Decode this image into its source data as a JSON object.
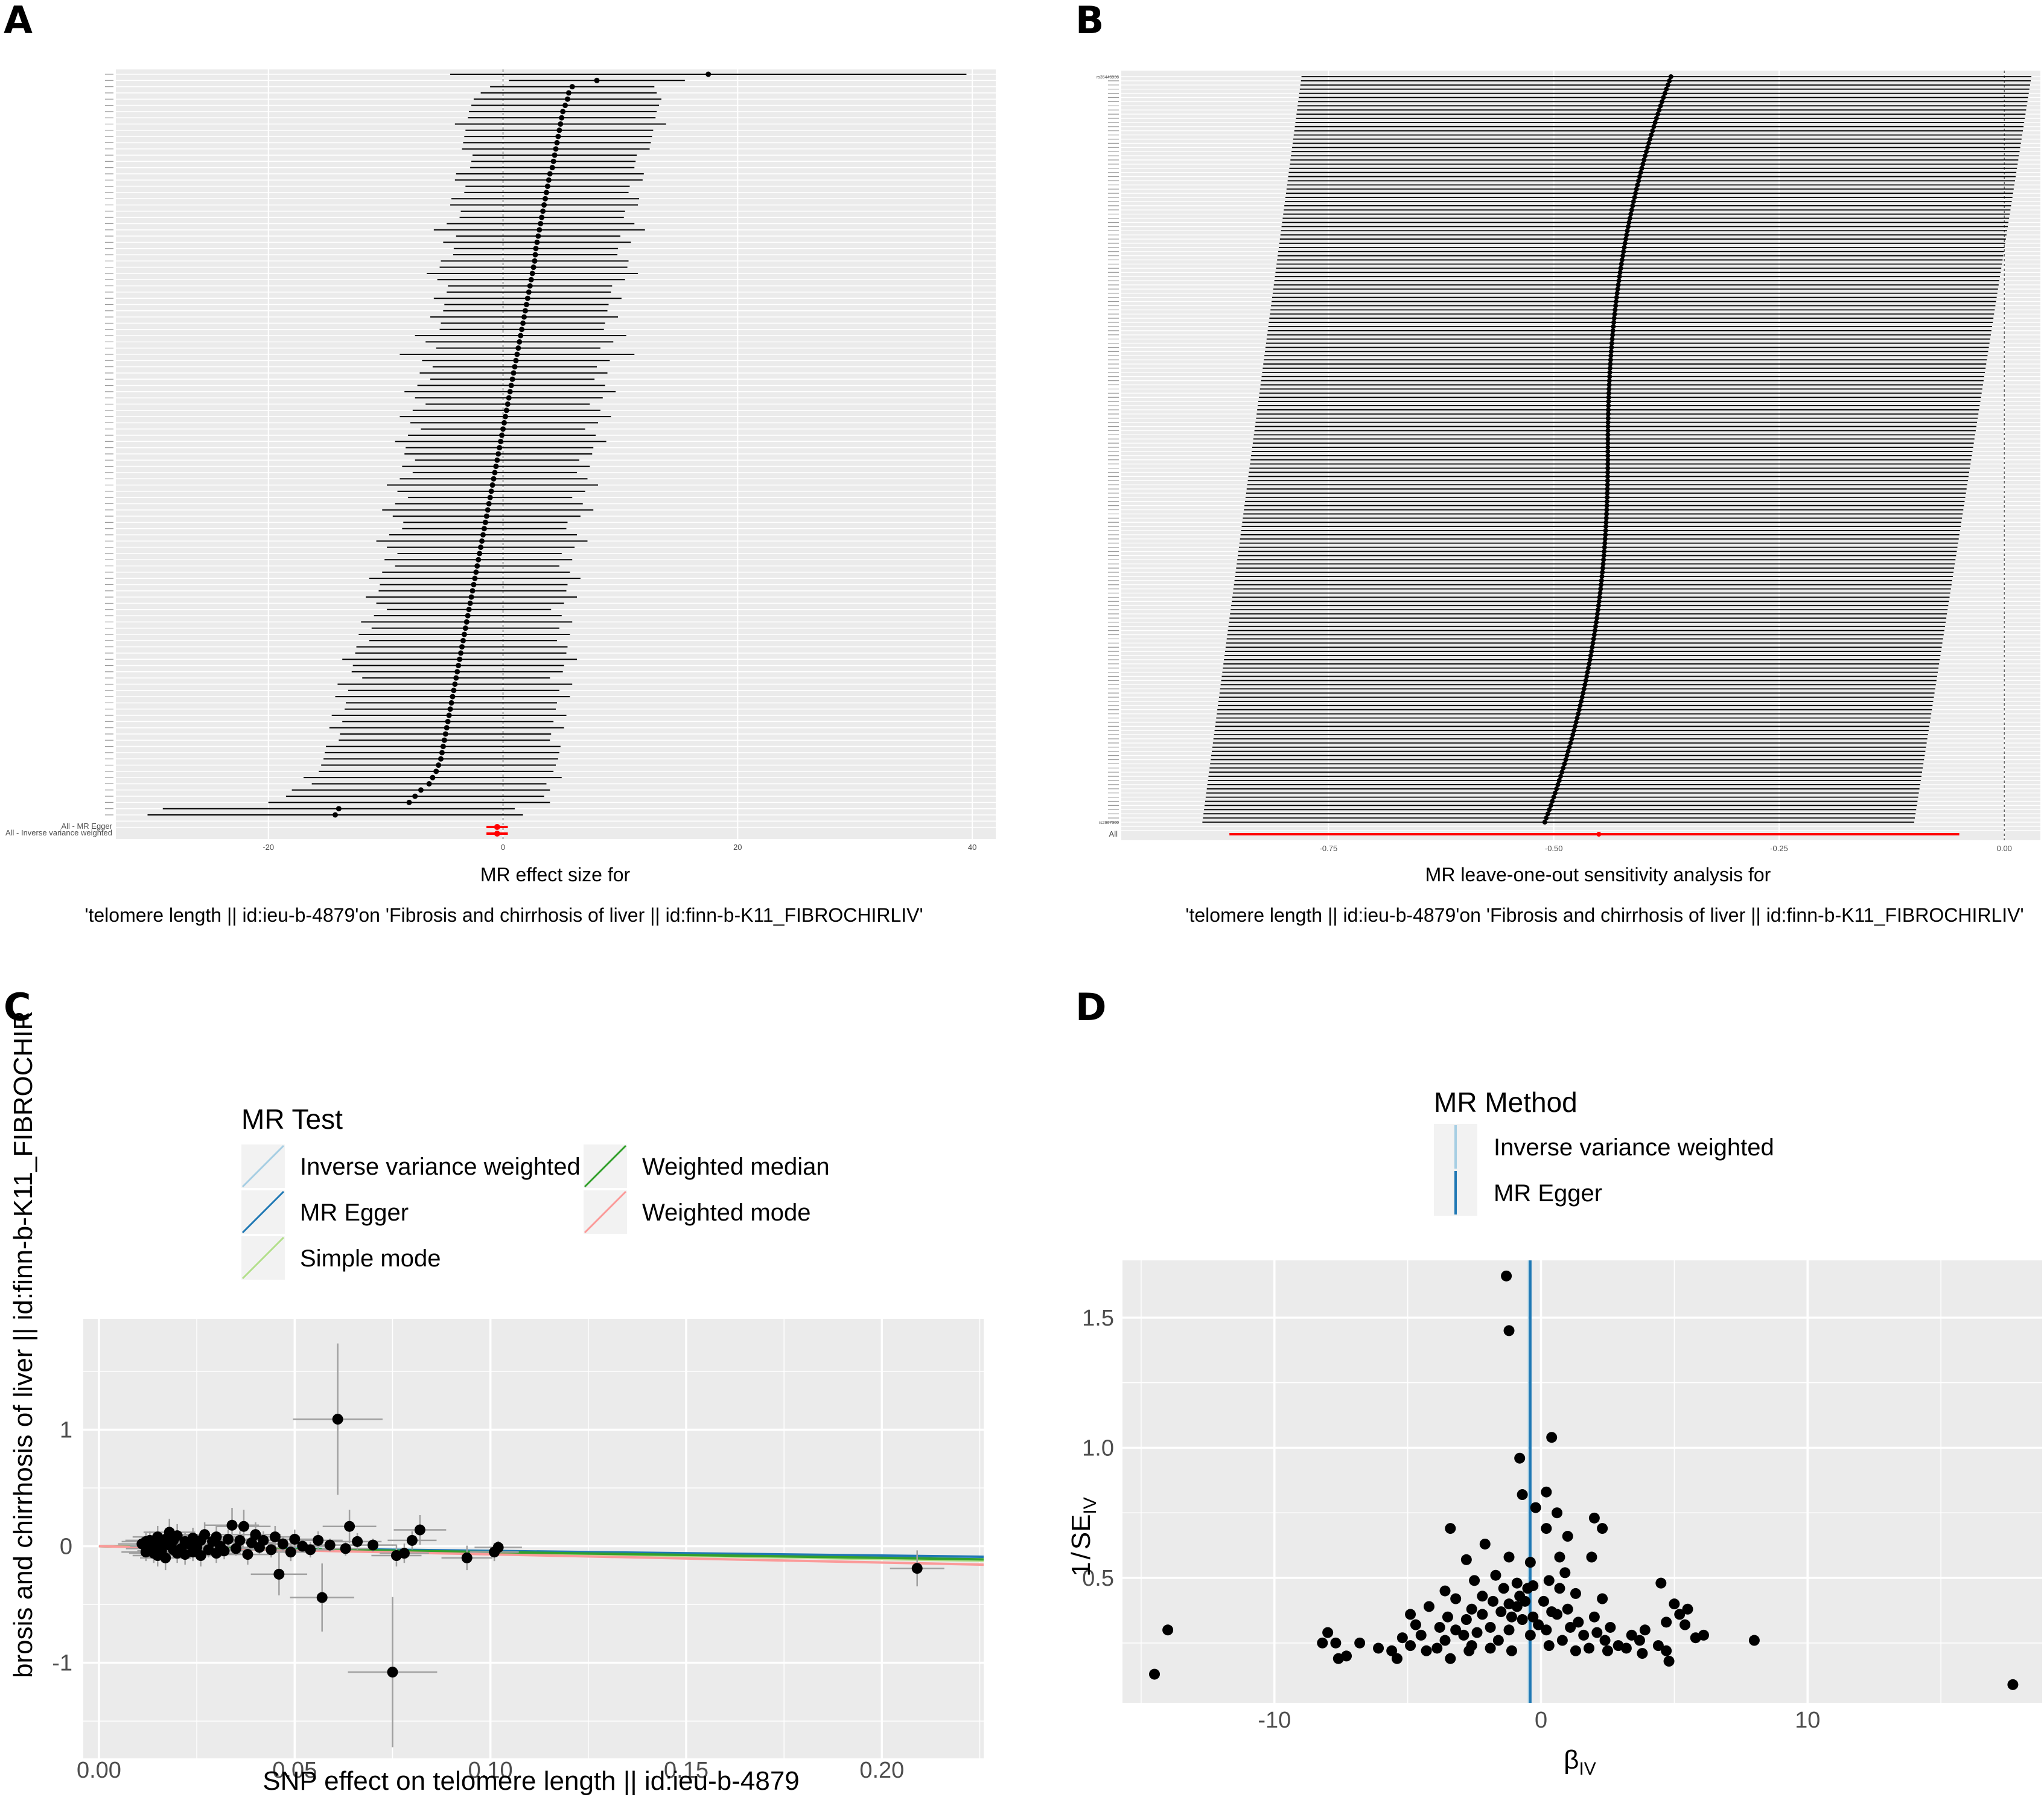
{
  "panels": {
    "A": {
      "label": "A",
      "xlabel": "MR effect size for",
      "subtitle": "'telomere length || id:ieu-b-4879'on 'Fibrosis and chirrhosis of liver || id:finn-b-K11_FIBROCHIRLIV'"
    },
    "B": {
      "label": "B",
      "xlabel": "MR leave-one-out sensitivity analysis for",
      "subtitle": "'telomere length || id:ieu-b-4879'on 'Fibrosis and chirrhosis of liver || id:finn-b-K11_FIBROCHIRLIV'"
    },
    "C": {
      "label": "C",
      "xlabel": "SNP effect on telomere length || id:ieu-b-4879",
      "ylabel": "brosis and chirrhosis of liver || id:finn-b-K11_FIBROCHIR"
    },
    "D": {
      "label": "D",
      "xlabel": "β",
      "xlabel_sub": "IV",
      "ylabel_prefix": "1",
      "ylabel": "SE",
      "ylabel_sub": "IV"
    }
  },
  "colors": {
    "panel_bg": "#ebebeb",
    "grid": "#ffffff",
    "point": "#000000",
    "summary": "#ff0000",
    "ivw": "#a6cee3",
    "egger": "#1f78b4",
    "simple_mode": "#b2df8a",
    "weighted_median": "#33a02c",
    "weighted_mode": "#fb9a99"
  },
  "chart_data": [
    {
      "type": "scatter",
      "panel": "A",
      "title": "",
      "xlabel": "MR effect size for",
      "xlim": [
        -33,
        42
      ],
      "xticks": [
        "-20",
        "0",
        "20",
        "40"
      ],
      "xtick_values": [
        -20,
        0,
        20,
        40
      ],
      "summary_labels": [
        "All - MR Egger",
        "All - Inverse variance weighted"
      ],
      "summary": [
        {
          "name": "All - MR Egger",
          "b": -0.5,
          "lo": -1.0,
          "hi": 0.0
        },
        {
          "name": "All - Inverse variance weighted",
          "b": -0.5,
          "lo": -1.0,
          "hi": 0.0
        }
      ],
      "estimates": [
        17.5,
        8.0,
        5.9,
        5.6,
        5.5,
        5.3,
        5.1,
        5.0,
        4.9,
        4.8,
        4.7,
        4.6,
        4.5,
        4.4,
        4.3,
        4.2,
        4.0,
        3.9,
        3.8,
        3.7,
        3.6,
        3.5,
        3.4,
        3.3,
        3.2,
        3.1,
        3.0,
        2.9,
        2.8,
        2.75,
        2.7,
        2.6,
        2.5,
        2.4,
        2.3,
        2.2,
        2.1,
        2.0,
        1.9,
        1.8,
        1.7,
        1.6,
        1.5,
        1.4,
        1.3,
        1.2,
        1.1,
        1.0,
        0.9,
        0.8,
        0.7,
        0.6,
        0.5,
        0.4,
        0.3,
        0.2,
        0.1,
        0.0,
        -0.1,
        -0.2,
        -0.3,
        -0.4,
        -0.5,
        -0.6,
        -0.7,
        -0.8,
        -0.9,
        -1.0,
        -1.1,
        -1.2,
        -1.3,
        -1.4,
        -1.5,
        -1.6,
        -1.7,
        -1.8,
        -1.9,
        -2.0,
        -2.1,
        -2.2,
        -2.3,
        -2.4,
        -2.5,
        -2.6,
        -2.7,
        -2.8,
        -2.9,
        -3.0,
        -3.1,
        -3.2,
        -3.3,
        -3.4,
        -3.5,
        -3.6,
        -3.7,
        -3.8,
        -3.9,
        -4.0,
        -4.1,
        -4.2,
        -4.3,
        -4.4,
        -4.5,
        -4.6,
        -4.7,
        -4.8,
        -4.9,
        -5.0,
        -5.1,
        -5.2,
        -5.3,
        -5.5,
        -5.7,
        -6.0,
        -6.3,
        -7.0,
        -7.5,
        -8.0,
        -14.0,
        -14.3
      ],
      "ci_half": [
        22,
        7.5,
        7,
        7.5,
        8,
        8,
        8,
        8,
        9,
        8,
        8,
        8,
        8,
        7,
        7,
        7,
        8,
        8,
        7,
        7,
        8,
        8,
        7,
        7,
        8,
        9,
        7,
        8,
        7,
        7,
        8,
        8,
        9,
        8,
        7,
        7,
        8,
        7,
        7,
        8,
        7,
        7,
        9,
        8,
        7,
        10,
        8,
        7,
        8,
        7,
        8,
        9,
        8,
        7,
        8,
        9,
        8,
        7,
        8,
        9,
        8,
        8,
        7,
        8,
        7,
        8,
        9,
        8,
        7,
        8,
        9,
        8,
        7,
        7,
        8,
        9,
        8,
        7,
        8,
        7,
        8,
        9,
        8,
        8,
        9,
        8,
        7,
        8,
        9,
        8,
        9,
        8,
        9,
        9,
        10,
        9,
        9,
        8,
        10,
        9,
        10,
        9,
        9,
        10,
        9,
        10,
        9,
        9,
        10,
        10,
        10,
        10,
        10,
        11,
        10,
        11,
        11,
        12,
        15,
        16
      ]
    },
    {
      "type": "scatter",
      "panel": "B",
      "title": "",
      "xlabel": "MR leave-one-out sensitivity analysis for",
      "xlim": [
        -0.98,
        0.04
      ],
      "xticks": [
        "-0.75",
        "-0.50",
        "-0.25",
        "0.00"
      ],
      "xtick_values": [
        -0.75,
        -0.5,
        -0.25,
        0.0
      ],
      "all_label": "All",
      "top_label": "rs35446936",
      "bottom_label": "rs2967300",
      "all_estimate": {
        "b": -0.45,
        "lo": -0.86,
        "hi": -0.05
      },
      "estimates_range": [
        -0.37,
        -0.51
      ],
      "ci_left_range": [
        -0.78,
        -0.89
      ],
      "ci_right_range": [
        0.03,
        -0.1
      ]
    },
    {
      "type": "scatter",
      "panel": "C",
      "title": "",
      "xlabel": "SNP effect on telomere length || id:ieu-b-4879",
      "ylabel": "brosis and chirrhosis of liver || id:finn-b-K11_FIBROCHIR",
      "xlim": [
        -0.004,
        0.226
      ],
      "ylim": [
        -1.82,
        1.95
      ],
      "xticks": [
        "0.00",
        "0.05",
        "0.10",
        "0.15",
        "0.20"
      ],
      "yticks": [
        "-1",
        "0",
        "1"
      ],
      "legend_title": "MR Test",
      "legend": [
        "Inverse variance weighted",
        "MR Egger",
        "Simple mode",
        "Weighted median",
        "Weighted mode"
      ],
      "lines": [
        {
          "name": "Inverse variance weighted",
          "slope": -0.45
        },
        {
          "name": "MR Egger",
          "slope": -0.4
        },
        {
          "name": "Simple mode",
          "slope": -0.55
        },
        {
          "name": "Weighted median",
          "slope": -0.5
        },
        {
          "name": "Weighted mode",
          "slope": -0.7
        }
      ],
      "points": [
        [
          0.011,
          0.02
        ],
        [
          0.012,
          -0.05
        ],
        [
          0.012,
          0.04
        ],
        [
          0.013,
          -0.02
        ],
        [
          0.013,
          0.05
        ],
        [
          0.014,
          -0.06
        ],
        [
          0.014,
          0.0
        ],
        [
          0.015,
          0.08
        ],
        [
          0.015,
          -0.08
        ],
        [
          0.016,
          0.03
        ],
        [
          0.016,
          -0.04
        ],
        [
          0.017,
          0.06
        ],
        [
          0.017,
          -0.1
        ],
        [
          0.018,
          0.01
        ],
        [
          0.018,
          0.12
        ],
        [
          0.019,
          -0.03
        ],
        [
          0.019,
          0.05
        ],
        [
          0.02,
          -0.06
        ],
        [
          0.02,
          0.09
        ],
        [
          0.021,
          -0.02
        ],
        [
          0.022,
          0.04
        ],
        [
          0.022,
          -0.07
        ],
        [
          0.023,
          0.02
        ],
        [
          0.024,
          -0.05
        ],
        [
          0.024,
          0.07
        ],
        [
          0.025,
          -0.01
        ],
        [
          0.026,
          0.05
        ],
        [
          0.026,
          -0.08
        ],
        [
          0.027,
          0.1
        ],
        [
          0.028,
          -0.03
        ],
        [
          0.029,
          0.04
        ],
        [
          0.03,
          -0.06
        ],
        [
          0.03,
          0.08
        ],
        [
          0.031,
          0.0
        ],
        [
          0.032,
          -0.04
        ],
        [
          0.033,
          0.06
        ],
        [
          0.034,
          0.18
        ],
        [
          0.035,
          -0.02
        ],
        [
          0.036,
          0.05
        ],
        [
          0.037,
          0.17
        ],
        [
          0.038,
          -0.07
        ],
        [
          0.039,
          0.03
        ],
        [
          0.04,
          0.1
        ],
        [
          0.041,
          -0.01
        ],
        [
          0.042,
          0.05
        ],
        [
          0.044,
          -0.03
        ],
        [
          0.045,
          0.08
        ],
        [
          0.046,
          -0.24
        ],
        [
          0.047,
          0.02
        ],
        [
          0.049,
          -0.05
        ],
        [
          0.05,
          0.06
        ],
        [
          0.052,
          0.0
        ],
        [
          0.054,
          -0.03
        ],
        [
          0.056,
          0.05
        ],
        [
          0.057,
          -0.44
        ],
        [
          0.059,
          0.01
        ],
        [
          0.061,
          1.09
        ],
        [
          0.063,
          -0.02
        ],
        [
          0.064,
          0.17
        ],
        [
          0.066,
          0.04
        ],
        [
          0.07,
          0.01
        ],
        [
          0.075,
          -1.08
        ],
        [
          0.076,
          -0.08
        ],
        [
          0.078,
          -0.06
        ],
        [
          0.08,
          0.05
        ],
        [
          0.082,
          0.14
        ],
        [
          0.094,
          -0.1
        ],
        [
          0.101,
          -0.05
        ],
        [
          0.102,
          -0.01
        ],
        [
          0.209,
          -0.19
        ]
      ]
    },
    {
      "type": "scatter",
      "panel": "D",
      "title": "",
      "xlabel": "βIV",
      "ylabel": "1/SEIV",
      "xlim": [
        -15.7,
        18.8
      ],
      "ylim": [
        0.02,
        1.72
      ],
      "xticks": [
        "-10",
        "0",
        "10"
      ],
      "yticks": [
        "0.5",
        "1.0",
        "1.5"
      ],
      "legend_title": "MR Method",
      "legend": [
        "Inverse variance weighted",
        "MR Egger"
      ],
      "lines": [
        {
          "name": "Inverse variance weighted",
          "x": -0.45
        },
        {
          "name": "MR Egger",
          "x": -0.4
        }
      ],
      "points": [
        [
          -1.3,
          1.66
        ],
        [
          -1.2,
          1.45
        ],
        [
          0.4,
          1.04
        ],
        [
          -0.8,
          0.96
        ],
        [
          -0.7,
          0.82
        ],
        [
          0.2,
          0.83
        ],
        [
          -0.2,
          0.77
        ],
        [
          0.6,
          0.75
        ],
        [
          2.0,
          0.73
        ],
        [
          2.3,
          0.69
        ],
        [
          -3.4,
          0.69
        ],
        [
          0.2,
          0.69
        ],
        [
          1.0,
          0.66
        ],
        [
          -2.1,
          0.63
        ],
        [
          -1.2,
          0.58
        ],
        [
          0.7,
          0.58
        ],
        [
          1.9,
          0.58
        ],
        [
          -0.4,
          0.56
        ],
        [
          -2.8,
          0.57
        ],
        [
          0.9,
          0.52
        ],
        [
          -1.7,
          0.51
        ],
        [
          -2.5,
          0.49
        ],
        [
          -0.9,
          0.48
        ],
        [
          0.3,
          0.49
        ],
        [
          -0.3,
          0.47
        ],
        [
          4.5,
          0.48
        ],
        [
          -3.6,
          0.45
        ],
        [
          -1.4,
          0.46
        ],
        [
          -0.5,
          0.46
        ],
        [
          0.7,
          0.46
        ],
        [
          1.3,
          0.44
        ],
        [
          -2.2,
          0.43
        ],
        [
          -3.2,
          0.42
        ],
        [
          -0.8,
          0.43
        ],
        [
          2.3,
          0.42
        ],
        [
          -1.8,
          0.41
        ],
        [
          5.0,
          0.4
        ],
        [
          -1.2,
          0.4
        ],
        [
          -0.6,
          0.41
        ],
        [
          0.1,
          0.41
        ],
        [
          -4.2,
          0.39
        ],
        [
          -2.6,
          0.38
        ],
        [
          -0.9,
          0.39
        ],
        [
          1.0,
          0.38
        ],
        [
          5.5,
          0.38
        ],
        [
          -1.5,
          0.37
        ],
        [
          -4.9,
          0.36
        ],
        [
          -2.2,
          0.36
        ],
        [
          0.4,
          0.37
        ],
        [
          5.2,
          0.36
        ],
        [
          -3.5,
          0.35
        ],
        [
          -1.1,
          0.35
        ],
        [
          -0.3,
          0.35
        ],
        [
          0.6,
          0.36
        ],
        [
          2.0,
          0.35
        ],
        [
          -2.8,
          0.34
        ],
        [
          -0.7,
          0.34
        ],
        [
          1.4,
          0.33
        ],
        [
          4.7,
          0.33
        ],
        [
          -4.7,
          0.32
        ],
        [
          -3.8,
          0.31
        ],
        [
          -1.9,
          0.31
        ],
        [
          -0.1,
          0.32
        ],
        [
          1.1,
          0.31
        ],
        [
          2.6,
          0.31
        ],
        [
          5.4,
          0.32
        ],
        [
          -3.2,
          0.3
        ],
        [
          -2.4,
          0.29
        ],
        [
          -1.2,
          0.3
        ],
        [
          0.2,
          0.3
        ],
        [
          2.1,
          0.29
        ],
        [
          3.9,
          0.3
        ],
        [
          -14.0,
          0.3
        ],
        [
          -8.0,
          0.29
        ],
        [
          -4.5,
          0.28
        ],
        [
          -2.9,
          0.28
        ],
        [
          -0.4,
          0.28
        ],
        [
          1.6,
          0.28
        ],
        [
          3.4,
          0.28
        ],
        [
          6.1,
          0.28
        ],
        [
          8.0,
          0.26
        ],
        [
          -5.2,
          0.27
        ],
        [
          -3.6,
          0.26
        ],
        [
          -1.6,
          0.26
        ],
        [
          0.8,
          0.26
        ],
        [
          2.4,
          0.26
        ],
        [
          3.7,
          0.26
        ],
        [
          5.8,
          0.27
        ],
        [
          -7.7,
          0.25
        ],
        [
          -4.9,
          0.24
        ],
        [
          -2.6,
          0.24
        ],
        [
          0.3,
          0.24
        ],
        [
          2.9,
          0.24
        ],
        [
          4.4,
          0.24
        ],
        [
          -8.2,
          0.25
        ],
        [
          -6.8,
          0.25
        ],
        [
          -5.6,
          0.22
        ],
        [
          -3.9,
          0.23
        ],
        [
          -1.9,
          0.23
        ],
        [
          1.8,
          0.23
        ],
        [
          3.2,
          0.23
        ],
        [
          4.7,
          0.22
        ],
        [
          -6.1,
          0.23
        ],
        [
          -4.3,
          0.22
        ],
        [
          -2.7,
          0.22
        ],
        [
          -1.1,
          0.22
        ],
        [
          1.3,
          0.22
        ],
        [
          2.5,
          0.22
        ],
        [
          3.8,
          0.21
        ],
        [
          -7.3,
          0.2
        ],
        [
          -5.4,
          0.19
        ],
        [
          -3.4,
          0.19
        ],
        [
          4.8,
          0.18
        ],
        [
          -7.6,
          0.19
        ],
        [
          -14.5,
          0.13
        ],
        [
          17.7,
          0.09
        ]
      ]
    }
  ]
}
